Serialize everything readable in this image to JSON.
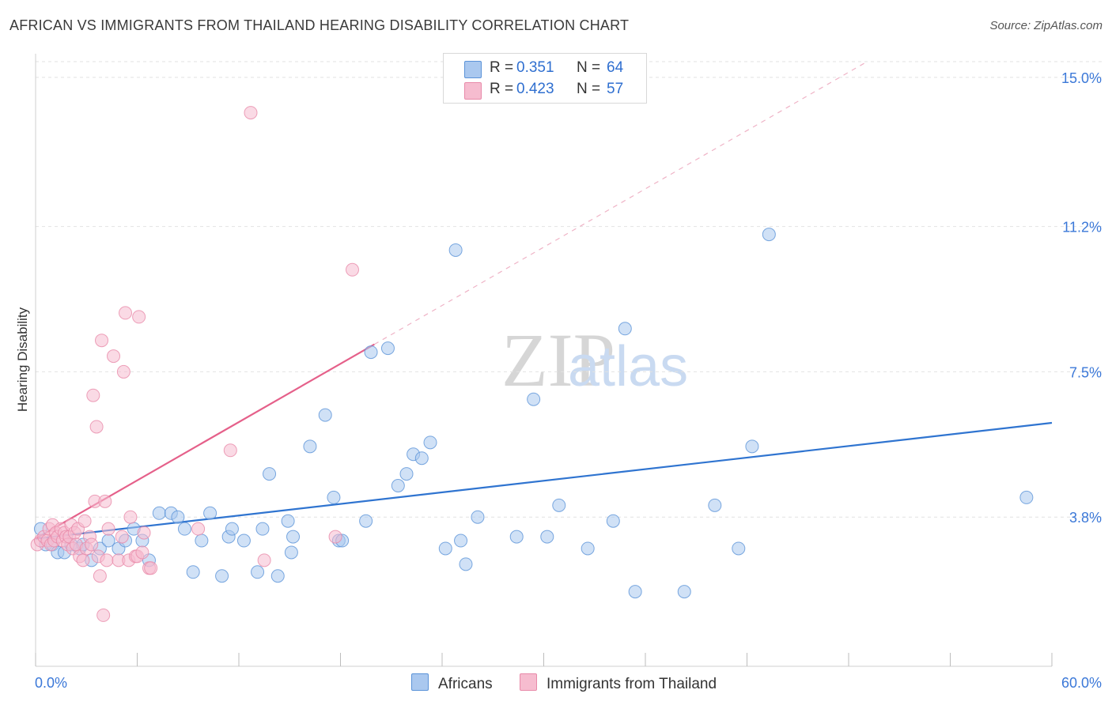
{
  "title": "AFRICAN VS IMMIGRANTS FROM THAILAND HEARING DISABILITY CORRELATION CHART",
  "source": "Source: ZipAtlas.com",
  "watermark": {
    "zip": "ZIP",
    "atlas": "atlas"
  },
  "legend": {
    "r_label": "R =",
    "n_label": "N =",
    "africans": {
      "r": "0.351",
      "n": "64"
    },
    "thailand": {
      "r": "0.423",
      "n": "57"
    }
  },
  "colors": {
    "africans_fill": "#aac8ef",
    "africans_stroke": "#5b93d8",
    "africans_line": "#2f74d0",
    "thailand_fill": "#f6bccf",
    "thailand_stroke": "#e88aa9",
    "thailand_line": "#e5608a",
    "tick_label": "#3b78d8"
  },
  "chart_data": {
    "type": "scatter",
    "title": "AFRICAN VS IMMIGRANTS FROM THAILAND HEARING DISABILITY CORRELATION CHART",
    "xlabel": "",
    "ylabel": "Hearing Disability",
    "xlim": [
      0,
      60
    ],
    "ylim": [
      0,
      15.4
    ],
    "x_tick_labels": [
      "0.0%",
      "60.0%"
    ],
    "y_ticks": [
      3.8,
      7.5,
      11.2,
      15.0
    ],
    "y_tick_labels": [
      "3.8%",
      "7.5%",
      "11.2%",
      "15.0%"
    ],
    "grid": true,
    "legend_position": "top-center",
    "series": [
      {
        "name": "Africans",
        "points": [
          [
            0.3,
            3.5
          ],
          [
            0.6,
            3.1
          ],
          [
            1.0,
            3.1
          ],
          [
            1.3,
            2.9
          ],
          [
            1.7,
            2.9
          ],
          [
            2.1,
            3.1
          ],
          [
            2.6,
            3.0
          ],
          [
            2.8,
            3.1
          ],
          [
            3.3,
            2.7
          ],
          [
            3.8,
            3.0
          ],
          [
            4.3,
            3.2
          ],
          [
            4.9,
            3.0
          ],
          [
            5.3,
            3.2
          ],
          [
            5.8,
            3.5
          ],
          [
            6.3,
            3.2
          ],
          [
            6.7,
            2.7
          ],
          [
            7.3,
            3.9
          ],
          [
            8.0,
            3.9
          ],
          [
            8.4,
            3.8
          ],
          [
            8.8,
            3.5
          ],
          [
            9.3,
            2.4
          ],
          [
            9.8,
            3.2
          ],
          [
            10.3,
            3.9
          ],
          [
            11.0,
            2.3
          ],
          [
            11.4,
            3.3
          ],
          [
            11.6,
            3.5
          ],
          [
            12.3,
            3.2
          ],
          [
            13.1,
            2.4
          ],
          [
            13.4,
            3.5
          ],
          [
            13.8,
            4.9
          ],
          [
            14.3,
            2.3
          ],
          [
            14.9,
            3.7
          ],
          [
            15.2,
            3.3
          ],
          [
            15.1,
            2.9
          ],
          [
            16.2,
            5.6
          ],
          [
            17.1,
            6.4
          ],
          [
            17.6,
            4.3
          ],
          [
            17.9,
            3.2
          ],
          [
            18.1,
            3.2
          ],
          [
            19.5,
            3.7
          ],
          [
            19.8,
            8.0
          ],
          [
            20.8,
            8.1
          ],
          [
            21.4,
            4.6
          ],
          [
            21.9,
            4.9
          ],
          [
            22.3,
            5.4
          ],
          [
            22.8,
            5.3
          ],
          [
            23.3,
            5.7
          ],
          [
            24.2,
            3.0
          ],
          [
            24.8,
            10.6
          ],
          [
            25.1,
            3.2
          ],
          [
            25.4,
            2.6
          ],
          [
            26.1,
            3.8
          ],
          [
            28.4,
            3.3
          ],
          [
            29.4,
            6.8
          ],
          [
            30.2,
            3.3
          ],
          [
            30.9,
            4.1
          ],
          [
            32.6,
            3.0
          ],
          [
            34.1,
            3.7
          ],
          [
            34.8,
            8.6
          ],
          [
            35.4,
            1.9
          ],
          [
            38.3,
            1.9
          ],
          [
            40.1,
            4.1
          ],
          [
            41.5,
            3.0
          ],
          [
            42.3,
            5.6
          ],
          [
            43.3,
            11.0
          ],
          [
            58.5,
            4.3
          ]
        ],
        "trend": {
          "x": [
            0,
            60
          ],
          "y": [
            3.25,
            6.2
          ]
        }
      },
      {
        "name": "Immigrants from Thailand",
        "points": [
          [
            0.1,
            3.1
          ],
          [
            0.3,
            3.2
          ],
          [
            0.5,
            3.3
          ],
          [
            0.7,
            3.2
          ],
          [
            0.8,
            3.5
          ],
          [
            0.9,
            3.1
          ],
          [
            1.0,
            3.6
          ],
          [
            1.1,
            3.2
          ],
          [
            1.2,
            3.4
          ],
          [
            1.3,
            3.3
          ],
          [
            1.5,
            3.5
          ],
          [
            1.6,
            3.2
          ],
          [
            1.7,
            3.4
          ],
          [
            1.8,
            3.3
          ],
          [
            1.9,
            3.1
          ],
          [
            2.0,
            3.3
          ],
          [
            2.1,
            3.6
          ],
          [
            2.2,
            3.0
          ],
          [
            2.3,
            3.4
          ],
          [
            2.4,
            3.1
          ],
          [
            2.5,
            3.5
          ],
          [
            2.6,
            2.8
          ],
          [
            2.8,
            2.7
          ],
          [
            2.9,
            3.7
          ],
          [
            3.0,
            3.0
          ],
          [
            3.2,
            3.3
          ],
          [
            3.4,
            6.9
          ],
          [
            3.5,
            4.2
          ],
          [
            3.6,
            6.1
          ],
          [
            3.7,
            2.8
          ],
          [
            3.8,
            2.3
          ],
          [
            3.9,
            8.3
          ],
          [
            4.0,
            1.3
          ],
          [
            4.1,
            4.2
          ],
          [
            4.2,
            2.7
          ],
          [
            4.3,
            3.5
          ],
          [
            4.6,
            7.9
          ],
          [
            4.9,
            2.7
          ],
          [
            5.1,
            3.3
          ],
          [
            5.2,
            7.5
          ],
          [
            5.3,
            9.0
          ],
          [
            5.5,
            2.7
          ],
          [
            5.6,
            3.8
          ],
          [
            5.9,
            2.8
          ],
          [
            6.0,
            2.8
          ],
          [
            6.1,
            8.9
          ],
          [
            6.3,
            2.9
          ],
          [
            6.4,
            3.4
          ],
          [
            6.7,
            2.5
          ],
          [
            6.8,
            2.5
          ],
          [
            9.6,
            3.5
          ],
          [
            11.5,
            5.5
          ],
          [
            12.7,
            14.1
          ],
          [
            13.5,
            2.7
          ],
          [
            17.7,
            3.3
          ],
          [
            18.7,
            10.1
          ],
          [
            3.3,
            3.1
          ]
        ],
        "trend": {
          "x": [
            0,
            20
          ],
          "y": [
            3.25,
            8.2
          ]
        }
      }
    ]
  }
}
